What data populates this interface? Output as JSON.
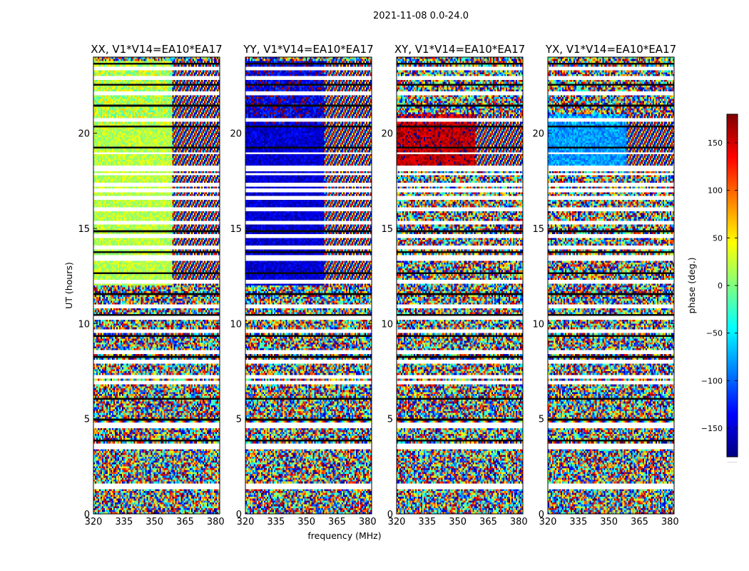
{
  "chart_data": {
    "type": "heatmap",
    "suptitle": "2021-11-08 0.0-24.0",
    "xlabel": "frequency (MHz)",
    "ylabel": "UT (hours)",
    "xlim": [
      320,
      382
    ],
    "ylim": [
      0,
      24
    ],
    "xticks": [
      320,
      335,
      350,
      365,
      380
    ],
    "yticks": [
      0,
      5,
      10,
      15,
      20
    ],
    "colorbar": {
      "label": "phase (deg.)",
      "range": [
        -180,
        180
      ],
      "ticks": [
        150,
        100,
        50,
        0,
        -50,
        -100,
        -150
      ],
      "tick_labels": [
        "150",
        "100",
        "50",
        "0",
        "−50",
        "−100",
        "−150"
      ],
      "colormap": "jet",
      "extra_label": "......"
    },
    "panels": [
      {
        "title": "XX, V1*V14=EA10*EA17",
        "baseline_phase_deg": 20,
        "coherent_hours": [
          12.0,
          23.8
        ]
      },
      {
        "title": "YY, V1*V14=EA10*EA17",
        "baseline_phase_deg": -150,
        "coherent_hours": [
          12.0,
          23.8
        ]
      },
      {
        "title": "XY, V1*V14=EA10*EA17",
        "baseline_phase_deg": 160,
        "coherent_hours": [
          18.0,
          21.0
        ]
      },
      {
        "title": "YX, V1*V14=EA10*EA17",
        "baseline_phase_deg": -80,
        "coherent_hours": [
          18.0,
          21.0
        ]
      }
    ],
    "flagged_hours": [
      1.4,
      1.5,
      3.5,
      3.6,
      4.6,
      4.7,
      6.9,
      7.2,
      8.0,
      8.5,
      9.6,
      10.3,
      10.9,
      12.2,
      13.4,
      13.55,
      14.0,
      14.6,
      15.3,
      16.0,
      16.6,
      17.0,
      17.3,
      17.85,
      18.05,
      18.2,
      18.95,
      20.7,
      22.1,
      22.9,
      23.4
    ],
    "rfi_band_hours": [
      4.8,
      4.95
    ]
  }
}
